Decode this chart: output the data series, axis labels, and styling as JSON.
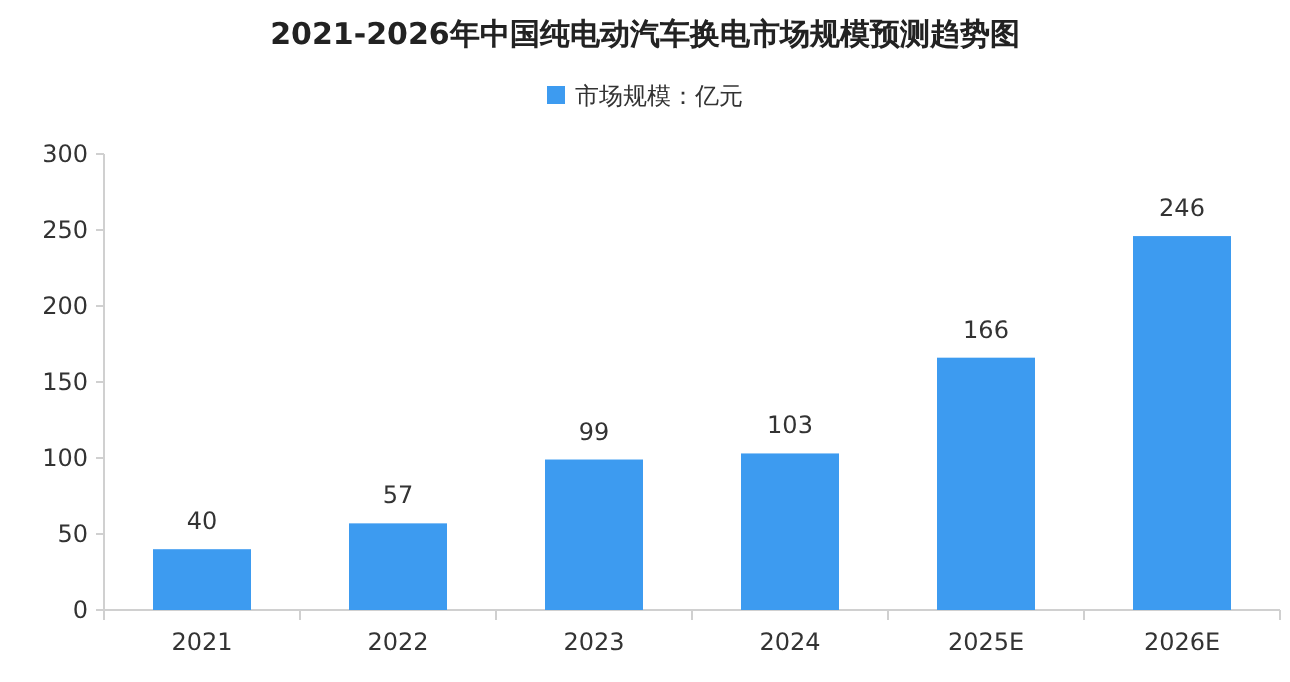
{
  "chart_data": {
    "type": "bar",
    "title": "2021-2026年中国纯电动汽车换电市场规模预测趋势图",
    "categories": [
      "2021",
      "2022",
      "2023",
      "2024",
      "2025E",
      "2026E"
    ],
    "series": [
      {
        "name": "市场规模：亿元",
        "color": "#3d9bf0",
        "values": [
          40,
          57,
          99,
          103,
          166,
          246
        ]
      }
    ],
    "ylim": [
      0,
      300
    ],
    "yticks": [
      0,
      50,
      100,
      150,
      200,
      250,
      300
    ],
    "grid": false,
    "legend": "top",
    "data_labels": true
  }
}
